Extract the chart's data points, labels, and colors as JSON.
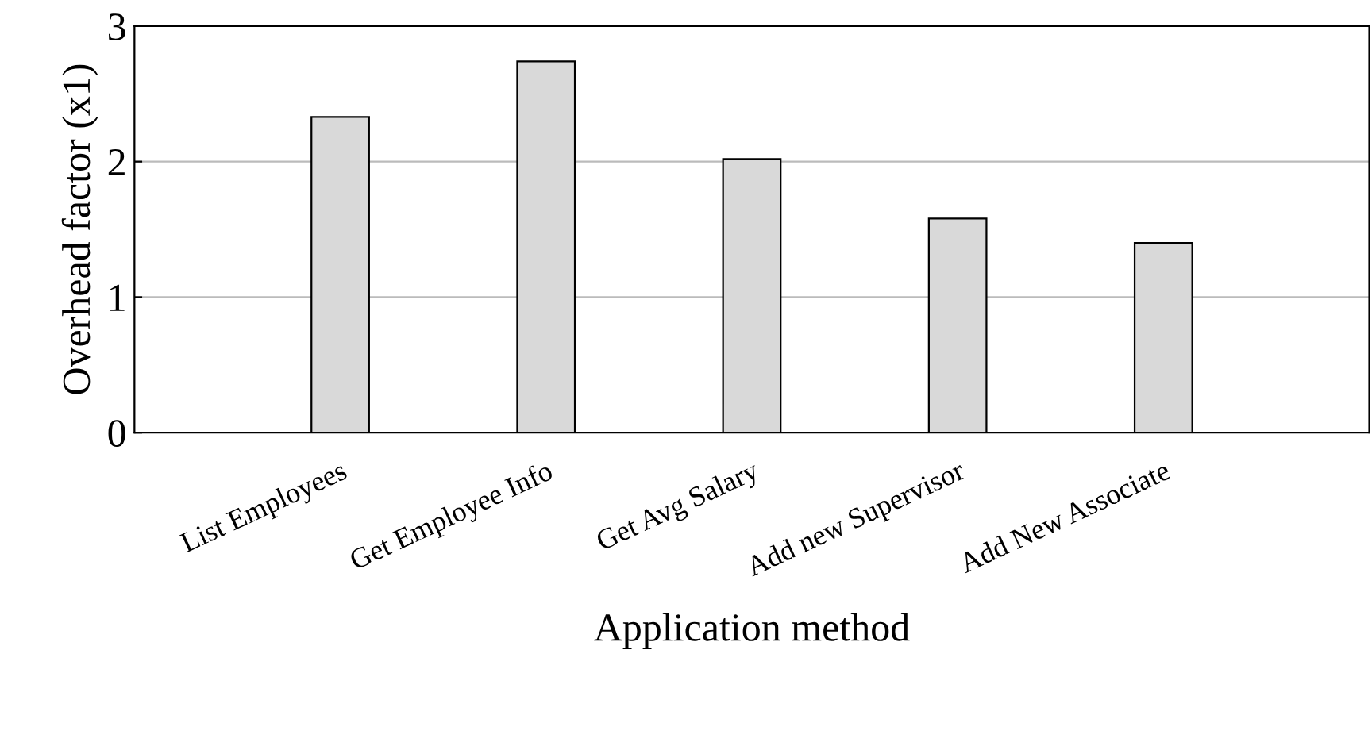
{
  "chart_data": {
    "type": "bar",
    "xlabel": "Application method",
    "ylabel": "Overhead factor (x1)",
    "categories": [
      "List Employees",
      "Get Employee Info",
      "Get Avg Salary",
      "Add new Supervisor",
      "Add New Associate"
    ],
    "values": [
      2.33,
      2.74,
      2.02,
      1.58,
      1.4
    ],
    "color": "#d9d9d9",
    "ylim": [
      0,
      3
    ],
    "yticks": [
      0,
      1,
      2,
      3
    ],
    "grid": "y"
  }
}
